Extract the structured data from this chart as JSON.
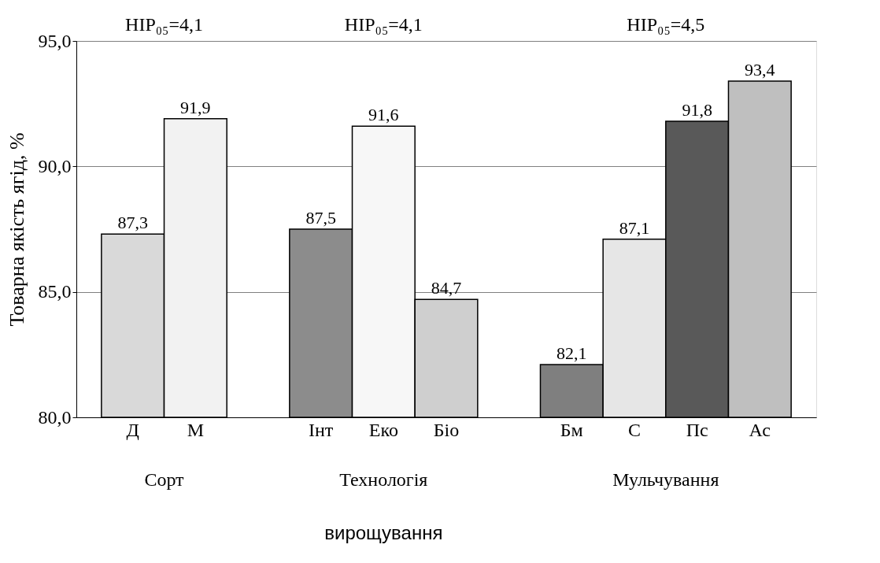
{
  "chart_data": {
    "type": "bar",
    "categories": [
      "Д",
      "М",
      null,
      "Інт",
      "Еко",
      "Біо",
      null,
      "Бм",
      "С",
      "Пс",
      "Ас"
    ],
    "values": [
      87.3,
      91.9,
      null,
      87.5,
      91.6,
      84.7,
      null,
      82.1,
      87.1,
      91.8,
      93.4
    ],
    "colors": [
      "#d9d9d9",
      "#f2f2f2",
      null,
      "#8c8c8c",
      "#f7f7f7",
      "#cfcfcf",
      null,
      "#7f7f7f",
      "#e6e6e6",
      "#595959",
      "#bfbfbf"
    ],
    "ylabel": "Товарна якість ягід, %",
    "ylim": [
      80,
      95
    ],
    "yticks": [
      {
        "value": 80,
        "label": "80,0"
      },
      {
        "value": 85,
        "label": "85,0"
      },
      {
        "value": 90,
        "label": "90,0"
      },
      {
        "value": 95,
        "label": "95,0"
      }
    ],
    "grid": "y",
    "value_labels": [
      "87,3",
      "91,9",
      null,
      "87,5",
      "91,6",
      "84,7",
      null,
      "82,1",
      "87,1",
      "91,8",
      "93,4"
    ],
    "annotations": [
      "HIP₀₅=4,1",
      "HIP₀₅=4,1",
      "HIP₀₅=4,5",
      "Сорт",
      "Технологія",
      "Мульчування",
      "вирощування"
    ]
  }
}
